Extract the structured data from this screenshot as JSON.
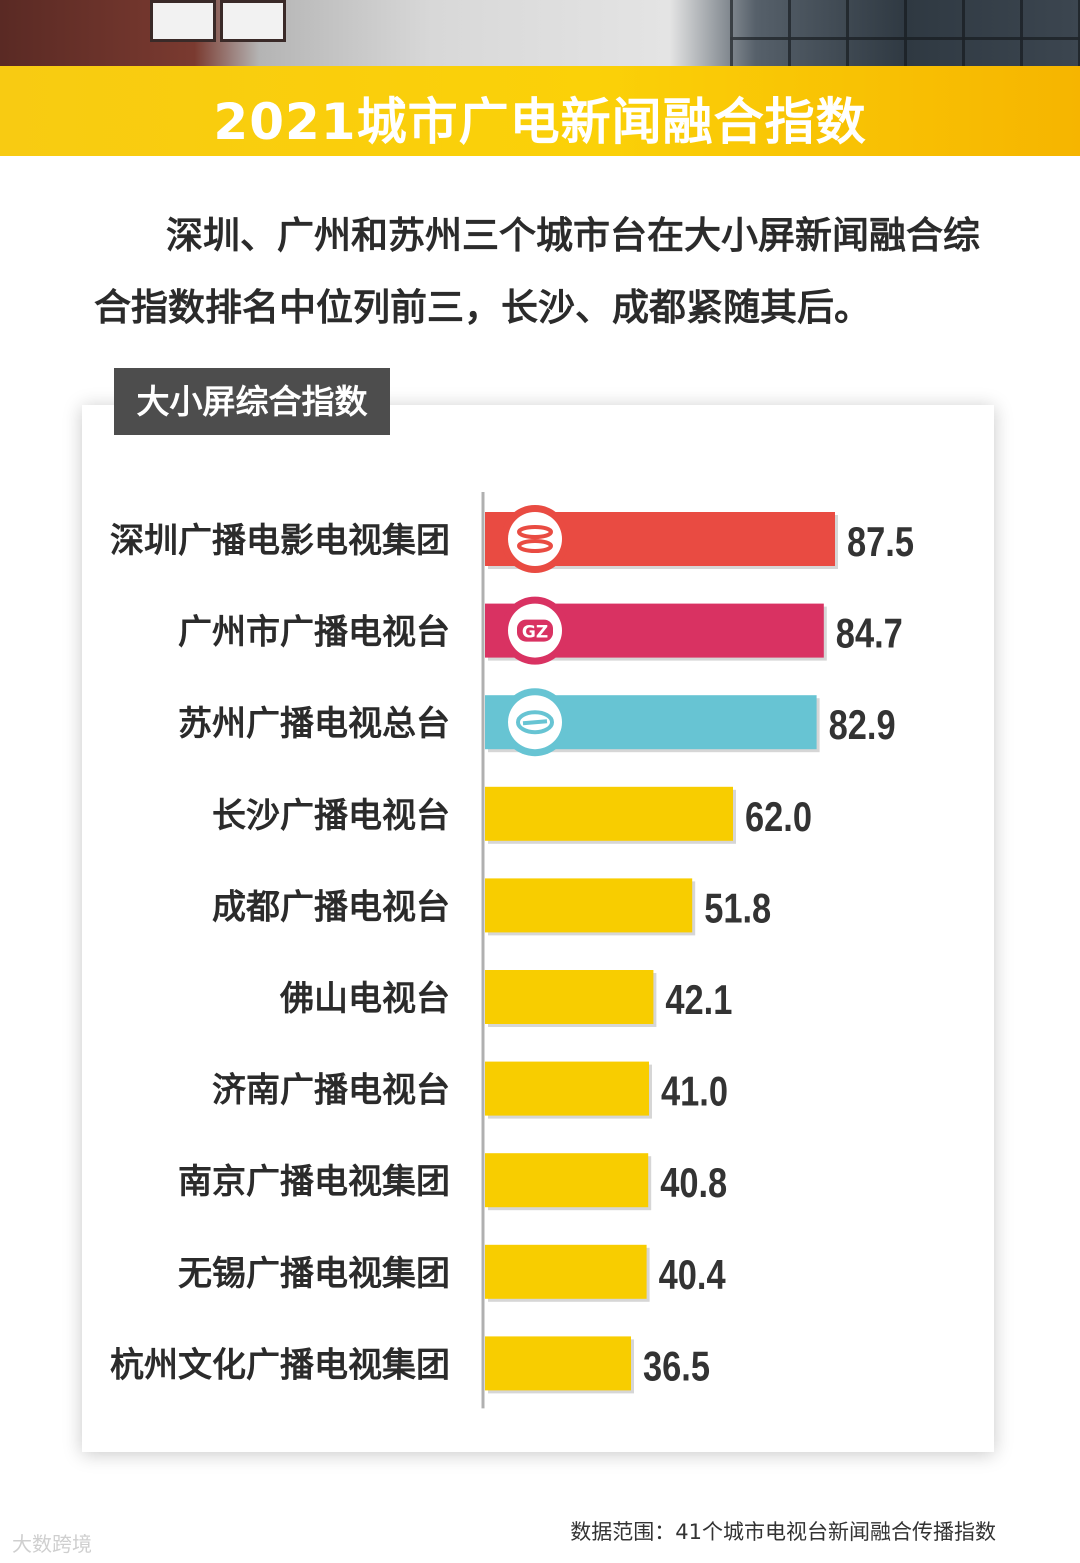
{
  "title": "2021城市广电新闻融合指数",
  "intro": "深圳、广州和苏州三个城市台在大小屏新闻融合综合指数排名中位列前三，长沙、成都紧随其后。",
  "card_title": "大小屏综合指数",
  "footnote": "数据范围：41个城市电视台新闻融合传播指数",
  "watermark": "大数跨境",
  "logos": [
    "shenzhen-logo",
    "guangzhou-gz-logo",
    "suzhou-logo"
  ],
  "logo_text": {
    "gz": "GZ"
  },
  "colors": {
    "banner": "#f9c80e",
    "bar_default": "#f8cd00",
    "bar_top": [
      "#e94b42",
      "#d93262",
      "#67c4d3"
    ],
    "text": "#2b2b2b"
  },
  "chart_data": {
    "type": "bar",
    "orientation": "horizontal",
    "title": "大小屏综合指数",
    "categories": [
      "深圳广播电影电视集团",
      "广州市广播电视台",
      "苏州广播电视总台",
      "长沙广播电视台",
      "成都广播电视台",
      "佛山电视台",
      "济南广播电视台",
      "南京广播电视集团",
      "无锡广播电视集团",
      "杭州文化广播电视集团"
    ],
    "values": [
      87.5,
      84.7,
      82.9,
      62.0,
      51.8,
      42.1,
      41.0,
      40.8,
      40.4,
      36.5
    ],
    "value_labels": [
      "87.5",
      "84.7",
      "82.9",
      "62.0",
      "51.8",
      "42.1",
      "41.0",
      "40.8",
      "40.4",
      "36.5"
    ],
    "xlim": [
      0,
      100
    ],
    "grid": false,
    "legend": "none"
  }
}
